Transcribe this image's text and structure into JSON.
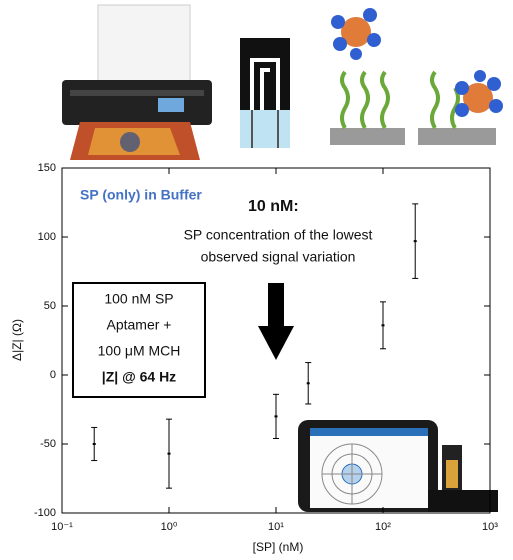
{
  "chart_data": {
    "type": "errorbar",
    "x_label": "[SP] (nM)",
    "y_label": "Δ|Z| (Ω)",
    "x": [
      0.2,
      1,
      10,
      20,
      100,
      200
    ],
    "values": [
      -50,
      -57,
      -30,
      -6,
      36,
      97
    ],
    "errors": [
      12,
      25,
      16,
      15,
      17,
      27
    ],
    "color": "#000000",
    "xscale": "log",
    "xlim": [
      0.1,
      1000
    ],
    "xticks": [
      {
        "value": 0.1,
        "label": "10⁻¹"
      },
      {
        "value": 1,
        "label": "10⁰"
      },
      {
        "value": 10,
        "label": "10¹"
      },
      {
        "value": 100,
        "label": "10²"
      },
      {
        "value": 1000,
        "label": "10³"
      }
    ],
    "ylim": [
      -100,
      150
    ],
    "yticks": [
      -100,
      -50,
      0,
      50,
      100,
      150
    ],
    "annotations": {
      "series_note": "SP (only) in Buffer",
      "threshold_title": "10 nM:",
      "threshold_text": [
        "SP concentration of the lowest",
        "observed signal variation"
      ],
      "conditions": [
        "100 nM SP",
        "Aptamer +",
        "100 μM MCH",
        "|Z| @ 64 Hz"
      ]
    }
  }
}
